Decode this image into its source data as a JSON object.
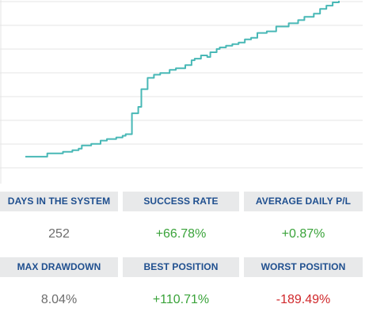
{
  "chart_data": {
    "type": "line",
    "grid": true,
    "line_color": "#48b8b6",
    "y_range": [
      0,
      100
    ],
    "points": [
      [
        0,
        3
      ],
      [
        5,
        3
      ],
      [
        7,
        5
      ],
      [
        10,
        5
      ],
      [
        12,
        6
      ],
      [
        14,
        6
      ],
      [
        15,
        7
      ],
      [
        17,
        8
      ],
      [
        18,
        10
      ],
      [
        21,
        11
      ],
      [
        24,
        13
      ],
      [
        26,
        14
      ],
      [
        29,
        15
      ],
      [
        31,
        16
      ],
      [
        32,
        17
      ],
      [
        34,
        30
      ],
      [
        36,
        34
      ],
      [
        37,
        45
      ],
      [
        39,
        52
      ],
      [
        41,
        54
      ],
      [
        43,
        55
      ],
      [
        46,
        57
      ],
      [
        48,
        58
      ],
      [
        51,
        60
      ],
      [
        53,
        63
      ],
      [
        54,
        64
      ],
      [
        56,
        66
      ],
      [
        58,
        65
      ],
      [
        59,
        68
      ],
      [
        61,
        70
      ],
      [
        62,
        71
      ],
      [
        64,
        72
      ],
      [
        66,
        73
      ],
      [
        68,
        74
      ],
      [
        70,
        76
      ],
      [
        72,
        77
      ],
      [
        74,
        80
      ],
      [
        77,
        81
      ],
      [
        80,
        84
      ],
      [
        84,
        86
      ],
      [
        87,
        88
      ],
      [
        89,
        90
      ],
      [
        92,
        92
      ],
      [
        94,
        95
      ],
      [
        96,
        97
      ],
      [
        98,
        99
      ],
      [
        100,
        100
      ]
    ]
  },
  "stats": [
    {
      "label": "DAYS IN THE SYSTEM",
      "value": "252",
      "tone": "neutral"
    },
    {
      "label": "SUCCESS RATE",
      "value": "+66.78%",
      "tone": "pos"
    },
    {
      "label": "AVERAGE DAILY P/L",
      "value": "+0.87%",
      "tone": "pos"
    },
    {
      "label": "MAX DRAWDOWN",
      "value": "8.04%",
      "tone": "neutral"
    },
    {
      "label": "BEST POSITION",
      "value": "+110.71%",
      "tone": "pos"
    },
    {
      "label": "WORST POSITION",
      "value": "-189.49%",
      "tone": "neg"
    }
  ]
}
